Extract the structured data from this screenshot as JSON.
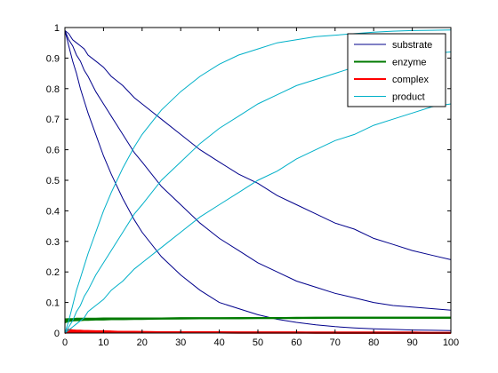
{
  "chart_data": {
    "type": "line",
    "xlim": [
      0,
      100
    ],
    "ylim": [
      0,
      1
    ],
    "xticks": [
      0,
      10,
      20,
      30,
      40,
      50,
      60,
      70,
      80,
      90,
      100
    ],
    "yticks": [
      0,
      0.1,
      0.2,
      0.3,
      0.4,
      0.5,
      0.6,
      0.7,
      0.8,
      0.9,
      1
    ],
    "grid": false,
    "legend_placement": "top-right",
    "x": [
      0,
      1,
      2,
      3,
      4,
      5,
      6,
      8,
      10,
      12,
      15,
      18,
      20,
      25,
      30,
      35,
      40,
      45,
      50,
      55,
      60,
      65,
      70,
      75,
      80,
      85,
      90,
      95,
      100
    ],
    "series": [
      {
        "name": "substrate",
        "color": "#00008b",
        "curves": [
          [
            0.99,
            0.94,
            0.89,
            0.85,
            0.8,
            0.76,
            0.72,
            0.65,
            0.58,
            0.52,
            0.44,
            0.37,
            0.33,
            0.25,
            0.19,
            0.14,
            0.1,
            0.08,
            0.06,
            0.045,
            0.035,
            0.027,
            0.021,
            0.017,
            0.014,
            0.012,
            0.01,
            0.009,
            0.008
          ],
          [
            0.99,
            0.96,
            0.94,
            0.91,
            0.89,
            0.86,
            0.84,
            0.79,
            0.75,
            0.71,
            0.65,
            0.59,
            0.56,
            0.48,
            0.42,
            0.36,
            0.31,
            0.27,
            0.23,
            0.2,
            0.17,
            0.15,
            0.13,
            0.115,
            0.1,
            0.09,
            0.085,
            0.08,
            0.075
          ],
          [
            0.99,
            0.98,
            0.96,
            0.95,
            0.94,
            0.93,
            0.91,
            0.89,
            0.87,
            0.84,
            0.81,
            0.77,
            0.75,
            0.7,
            0.65,
            0.6,
            0.56,
            0.52,
            0.49,
            0.45,
            0.42,
            0.39,
            0.36,
            0.34,
            0.31,
            0.29,
            0.27,
            0.255,
            0.24
          ]
        ]
      },
      {
        "name": "enzyme",
        "color": "#007a00",
        "curves": [
          [
            0.035,
            0.039,
            0.041,
            0.042,
            0.042,
            0.043,
            0.043,
            0.044,
            0.044,
            0.045,
            0.045,
            0.046,
            0.046,
            0.047,
            0.047,
            0.048,
            0.048,
            0.048,
            0.049,
            0.049,
            0.049,
            0.049,
            0.05,
            0.05,
            0.05,
            0.05,
            0.05,
            0.05,
            0.05
          ],
          [
            0.04,
            0.042,
            0.043,
            0.044,
            0.044,
            0.045,
            0.045,
            0.045,
            0.046,
            0.046,
            0.046,
            0.047,
            0.047,
            0.047,
            0.048,
            0.048,
            0.048,
            0.049,
            0.049,
            0.049,
            0.049,
            0.05,
            0.05,
            0.05,
            0.05,
            0.05,
            0.05,
            0.05,
            0.05
          ],
          [
            0.045,
            0.046,
            0.046,
            0.047,
            0.047,
            0.047,
            0.047,
            0.047,
            0.048,
            0.048,
            0.048,
            0.048,
            0.048,
            0.048,
            0.049,
            0.049,
            0.049,
            0.049,
            0.049,
            0.049,
            0.05,
            0.05,
            0.05,
            0.05,
            0.05,
            0.05,
            0.05,
            0.05,
            0.05
          ]
        ]
      },
      {
        "name": "complex",
        "color": "#ff0000",
        "curves": [
          [
            0.0,
            0.011,
            0.009,
            0.008,
            0.008,
            0.007,
            0.007,
            0.006,
            0.006,
            0.005,
            0.004,
            0.004,
            0.003,
            0.003,
            0.002,
            0.002,
            0.0015,
            0.001,
            0.001,
            0.001,
            0.0008,
            0.0006,
            0.0005,
            0.0004,
            0.0003,
            0.0003,
            0.0002,
            0.0002,
            0.0002
          ],
          [
            0.0,
            0.008,
            0.007,
            0.007,
            0.006,
            0.006,
            0.006,
            0.005,
            0.005,
            0.005,
            0.004,
            0.004,
            0.004,
            0.003,
            0.003,
            0.003,
            0.002,
            0.002,
            0.002,
            0.002,
            0.002,
            0.001,
            0.001,
            0.001,
            0.001,
            0.001,
            0.001,
            0.001,
            0.001
          ],
          [
            0.0,
            0.004,
            0.004,
            0.004,
            0.004,
            0.004,
            0.004,
            0.003,
            0.003,
            0.003,
            0.003,
            0.003,
            0.003,
            0.003,
            0.003,
            0.003,
            0.003,
            0.002,
            0.002,
            0.002,
            0.002,
            0.002,
            0.002,
            0.002,
            0.002,
            0.002,
            0.002,
            0.001,
            0.001
          ]
        ]
      },
      {
        "name": "product",
        "color": "#00b0c8",
        "curves": [
          [
            0.0,
            0.04,
            0.09,
            0.14,
            0.18,
            0.22,
            0.26,
            0.33,
            0.4,
            0.46,
            0.54,
            0.61,
            0.65,
            0.73,
            0.79,
            0.84,
            0.88,
            0.91,
            0.93,
            0.95,
            0.96,
            0.97,
            0.975,
            0.98,
            0.985,
            0.988,
            0.99,
            0.991,
            0.992
          ],
          [
            0.0,
            0.02,
            0.04,
            0.07,
            0.09,
            0.12,
            0.14,
            0.19,
            0.23,
            0.27,
            0.33,
            0.39,
            0.42,
            0.5,
            0.56,
            0.62,
            0.67,
            0.71,
            0.75,
            0.78,
            0.81,
            0.83,
            0.85,
            0.87,
            0.89,
            0.9,
            0.91,
            0.915,
            0.92
          ],
          [
            0.0,
            0.01,
            0.02,
            0.03,
            0.04,
            0.05,
            0.07,
            0.09,
            0.11,
            0.14,
            0.17,
            0.21,
            0.23,
            0.28,
            0.33,
            0.38,
            0.42,
            0.46,
            0.5,
            0.53,
            0.57,
            0.6,
            0.63,
            0.65,
            0.68,
            0.7,
            0.72,
            0.74,
            0.75
          ]
        ]
      }
    ]
  }
}
